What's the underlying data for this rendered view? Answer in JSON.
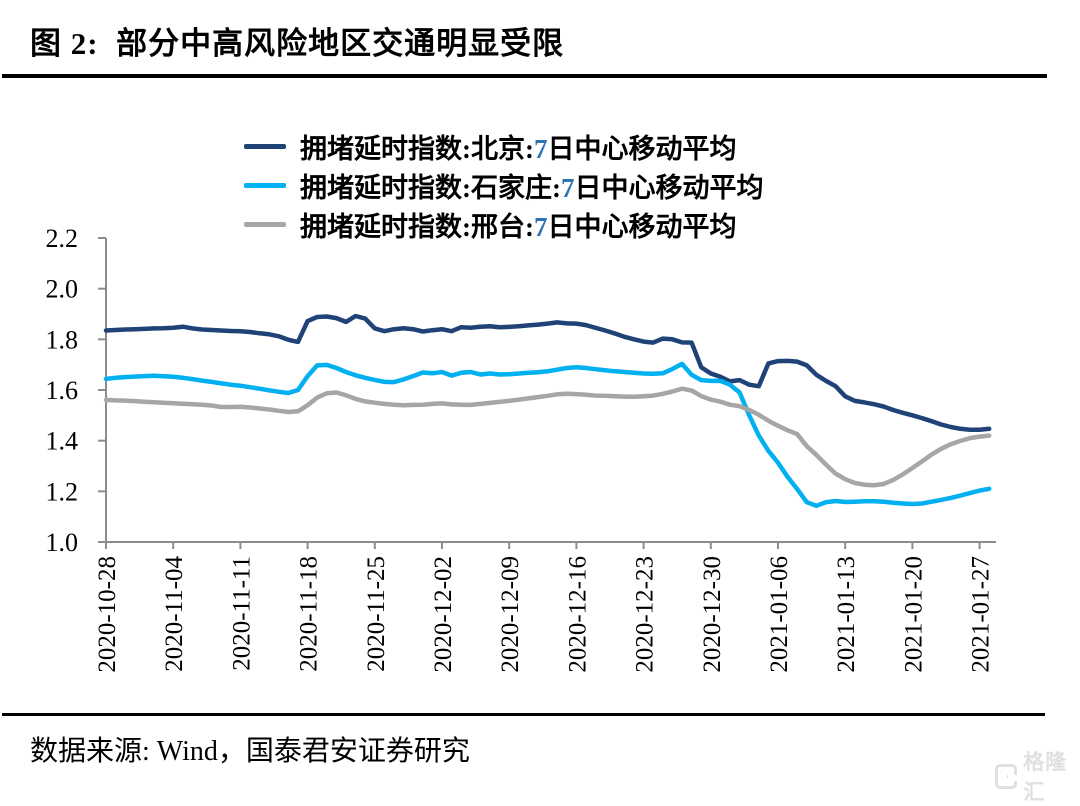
{
  "page": {
    "figure_title": "图 2:  部分中高风险地区交通明显受限",
    "source_note": "数据来源: Wind，国泰君安证券研究",
    "watermark": {
      "text": "格隆汇",
      "icon": "gelonghui-G"
    }
  },
  "chart_data": {
    "type": "line",
    "title": "部分中高风险地区交通明显受限",
    "grid": false,
    "legend_position": "top-center",
    "axis_color": "#8c8c8c",
    "legend_number_color": "#2E74B5",
    "ylim": [
      1.0,
      2.2
    ],
    "y_tick_labels": [
      "1.0",
      "1.2",
      "1.4",
      "1.6",
      "1.8",
      "2.0",
      "2.2"
    ],
    "x_tick_interval_days": 7,
    "x_tick_labels": [
      "2020-10-28",
      "2020-11-04",
      "2020-11-11",
      "2020-11-18",
      "2020-11-25",
      "2020-12-02",
      "2020-12-09",
      "2020-12-16",
      "2020-12-23",
      "2020-12-30",
      "2021-01-06",
      "2021-01-13",
      "2021-01-20",
      "2021-01-27"
    ],
    "series": [
      {
        "id": "beijing",
        "name": "拥堵延时指数:北京:7日中心移动平均",
        "label_pre": "拥堵延时指数:北京:",
        "label_num": "7",
        "label_post": "日中心移动平均",
        "color": "#1F4377",
        "values": [
          1.835,
          1.837,
          1.839,
          1.84,
          1.841,
          1.843,
          1.844,
          1.846,
          1.85,
          1.843,
          1.839,
          1.837,
          1.835,
          1.833,
          1.832,
          1.829,
          1.824,
          1.82,
          1.812,
          1.798,
          1.79,
          1.872,
          1.888,
          1.89,
          1.884,
          1.869,
          1.892,
          1.882,
          1.843,
          1.832,
          1.84,
          1.844,
          1.84,
          1.831,
          1.836,
          1.84,
          1.832,
          1.848,
          1.846,
          1.85,
          1.852,
          1.848,
          1.849,
          1.852,
          1.855,
          1.858,
          1.862,
          1.867,
          1.863,
          1.862,
          1.856,
          1.845,
          1.835,
          1.823,
          1.81,
          1.8,
          1.791,
          1.787,
          1.803,
          1.8,
          1.788,
          1.787,
          1.69,
          1.665,
          1.652,
          1.634,
          1.639,
          1.621,
          1.615,
          1.705,
          1.714,
          1.715,
          1.712,
          1.697,
          1.66,
          1.636,
          1.615,
          1.575,
          1.557,
          1.551,
          1.544,
          1.535,
          1.521,
          1.51,
          1.5,
          1.489,
          1.477,
          1.464,
          1.454,
          1.447,
          1.443,
          1.443,
          1.447
        ]
      },
      {
        "id": "shijiazhuang",
        "name": "拥堵延时指数:石家庄:7日中心移动平均",
        "label_pre": "拥堵延时指数:石家庄:",
        "label_num": "7",
        "label_post": "日中心移动平均",
        "color": "#00B0F0",
        "values": [
          1.644,
          1.648,
          1.651,
          1.653,
          1.655,
          1.656,
          1.654,
          1.652,
          1.648,
          1.643,
          1.637,
          1.632,
          1.626,
          1.621,
          1.617,
          1.611,
          1.605,
          1.599,
          1.593,
          1.588,
          1.6,
          1.655,
          1.697,
          1.699,
          1.687,
          1.671,
          1.658,
          1.648,
          1.64,
          1.632,
          1.631,
          1.642,
          1.655,
          1.669,
          1.666,
          1.671,
          1.657,
          1.668,
          1.671,
          1.661,
          1.665,
          1.661,
          1.662,
          1.665,
          1.668,
          1.67,
          1.674,
          1.68,
          1.687,
          1.69,
          1.687,
          1.682,
          1.678,
          1.674,
          1.671,
          1.668,
          1.665,
          1.664,
          1.666,
          1.683,
          1.703,
          1.66,
          1.639,
          1.636,
          1.636,
          1.621,
          1.59,
          1.5,
          1.42,
          1.36,
          1.313,
          1.257,
          1.209,
          1.157,
          1.143,
          1.157,
          1.162,
          1.158,
          1.159,
          1.161,
          1.161,
          1.159,
          1.155,
          1.152,
          1.15,
          1.152,
          1.159,
          1.166,
          1.174,
          1.183,
          1.193,
          1.203,
          1.21
        ]
      },
      {
        "id": "xingtai",
        "name": "拥堵延时指数:邢台:7日中心移动平均",
        "label_pre": "拥堵延时指数:邢台:",
        "label_num": "7",
        "label_post": "日中心移动平均",
        "color": "#A6A6A6",
        "values": [
          1.561,
          1.559,
          1.558,
          1.556,
          1.554,
          1.552,
          1.55,
          1.548,
          1.546,
          1.544,
          1.542,
          1.539,
          1.533,
          1.533,
          1.534,
          1.531,
          1.527,
          1.523,
          1.518,
          1.513,
          1.516,
          1.54,
          1.57,
          1.587,
          1.59,
          1.579,
          1.565,
          1.555,
          1.55,
          1.545,
          1.542,
          1.54,
          1.541,
          1.542,
          1.545,
          1.547,
          1.543,
          1.542,
          1.541,
          1.545,
          1.549,
          1.553,
          1.557,
          1.562,
          1.567,
          1.572,
          1.577,
          1.583,
          1.585,
          1.584,
          1.581,
          1.578,
          1.577,
          1.575,
          1.574,
          1.573,
          1.575,
          1.578,
          1.585,
          1.594,
          1.605,
          1.598,
          1.576,
          1.562,
          1.554,
          1.542,
          1.536,
          1.521,
          1.502,
          1.479,
          1.459,
          1.441,
          1.426,
          1.378,
          1.344,
          1.305,
          1.27,
          1.248,
          1.233,
          1.226,
          1.224,
          1.229,
          1.245,
          1.267,
          1.292,
          1.318,
          1.345,
          1.368,
          1.386,
          1.399,
          1.41,
          1.416,
          1.42
        ]
      }
    ]
  }
}
